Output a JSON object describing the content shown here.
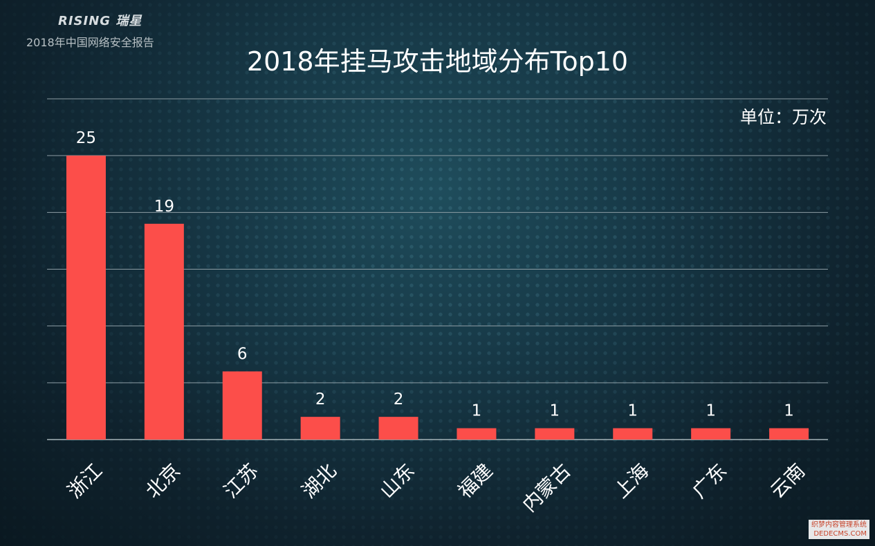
{
  "header": {
    "brand": "RISING 瑞星",
    "report_title": "2018年中国网络安全报告"
  },
  "watermark": {
    "line1": "织梦内容管理系统",
    "line2": "DEDECMS.COM"
  },
  "chart_data": {
    "type": "bar",
    "title": "2018年挂马攻击地域分布Top10",
    "unit_label": "单位：万次",
    "categories": [
      "浙江",
      "北京",
      "江苏",
      "湖北",
      "山东",
      "福建",
      "内蒙古",
      "上海",
      "广东",
      "云南"
    ],
    "values": [
      25,
      19,
      6,
      2,
      2,
      1,
      1,
      1,
      1,
      1
    ],
    "data_labels": [
      "25",
      "19",
      "6",
      "2",
      "2",
      "1",
      "1",
      "1",
      "1",
      "1"
    ],
    "ylim": [
      0,
      30
    ],
    "y_gridlines": [
      0,
      5,
      10,
      15,
      20,
      25,
      30
    ],
    "colors": {
      "bar": "#fc4e4a",
      "background": "#163644"
    },
    "grid": true,
    "legend": "none",
    "xlabel": "",
    "ylabel": ""
  }
}
